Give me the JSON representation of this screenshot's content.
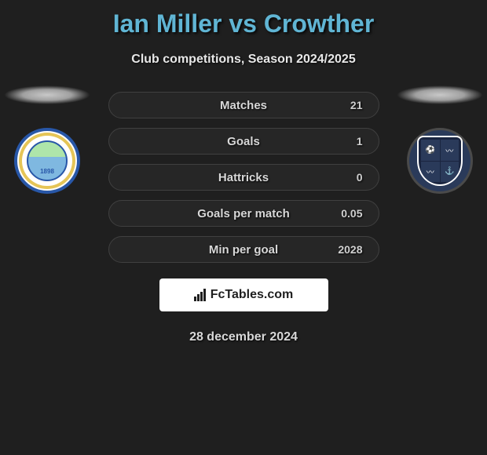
{
  "header": {
    "title": "Ian Miller vs Crowther",
    "subtitle": "Club competitions, Season 2024/2025",
    "title_color": "#60b5d4",
    "title_fontsize": 32,
    "subtitle_color": "#e8e8e8",
    "subtitle_fontsize": 16
  },
  "background_color": "#1f1f1f",
  "stat_row": {
    "background": "#262626",
    "border_color": "#404040",
    "border_radius": 17,
    "label_color": "#d8d8d8",
    "value_color": "#d0d0d0",
    "fontsize": 15
  },
  "stats": [
    {
      "label": "Matches",
      "value": "21"
    },
    {
      "label": "Goals",
      "value": "1"
    },
    {
      "label": "Hattricks",
      "value": "0"
    },
    {
      "label": "Goals per match",
      "value": "0.05"
    },
    {
      "label": "Min per goal",
      "value": "2028"
    }
  ],
  "badges": {
    "left": {
      "name": "braintree-town-badge",
      "outer_color": "#2857a8",
      "inner_ring_color": "#e5c557",
      "center_top_color": "#aee5aa",
      "center_bottom_color": "#7fb8e0",
      "year_text": "1898"
    },
    "right": {
      "name": "southend-united-badge",
      "outer_color": "#2a3a5a",
      "shield_color": "#1a2540",
      "border_color": "#ffffff"
    }
  },
  "brand": {
    "text": "FcTables.com",
    "background": "#ffffff",
    "text_color": "#1f1f1f",
    "icon": "bar-chart-icon"
  },
  "footer": {
    "date": "28 december 2024",
    "color": "#d8d8d8",
    "fontsize": 16
  }
}
